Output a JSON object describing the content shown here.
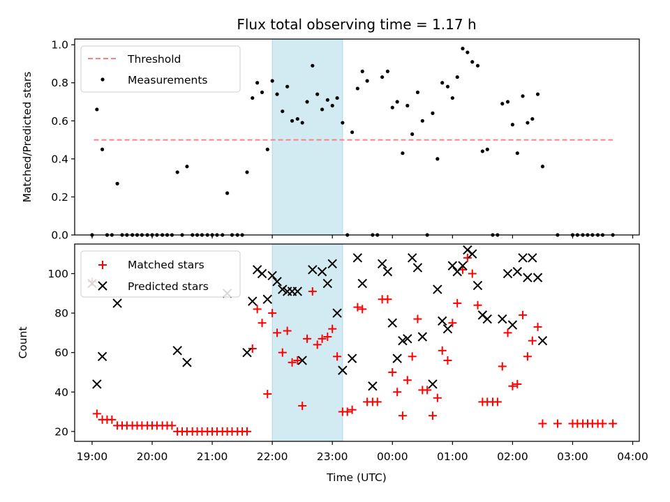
{
  "chart_data": [
    {
      "type": "scatter",
      "title": "Flux total observing time = 1.17 h",
      "ylabel": "Matched/Predicted stars",
      "xlim": [
        18.71,
        28.11
      ],
      "ylim": [
        0,
        1.03
      ],
      "yticks": [
        "0.0",
        "0.2",
        "0.4",
        "0.6",
        "0.8",
        "1.0"
      ],
      "ytick_values": [
        0,
        0.2,
        0.4,
        0.6,
        0.8,
        1.0
      ],
      "shaded_span": [
        22.0,
        23.17
      ],
      "threshold": {
        "name": "Threshold",
        "value": 0.5,
        "x_range": [
          19.03,
          27.67
        ],
        "color": "#ff7f7f"
      },
      "legend": {
        "position": "top-left",
        "entries": [
          "Threshold",
          "Measurements"
        ]
      },
      "series": [
        {
          "name": "Measurements",
          "color": "#000000",
          "points": [
            [
              19.0,
              0.0
            ],
            [
              19.08,
              0.66
            ],
            [
              19.17,
              0.45
            ],
            [
              19.25,
              0.0
            ],
            [
              19.33,
              0.0
            ],
            [
              19.42,
              0.27
            ],
            [
              19.5,
              0.0
            ],
            [
              19.58,
              0.0
            ],
            [
              19.67,
              0.0
            ],
            [
              19.75,
              0.0
            ],
            [
              19.83,
              0.0
            ],
            [
              19.92,
              0.0
            ],
            [
              20.0,
              0.0
            ],
            [
              20.08,
              0.0
            ],
            [
              20.17,
              0.0
            ],
            [
              20.25,
              0.0
            ],
            [
              20.33,
              0.0
            ],
            [
              20.42,
              0.33
            ],
            [
              20.5,
              0.0
            ],
            [
              20.58,
              0.36
            ],
            [
              20.67,
              0.0
            ],
            [
              20.75,
              0.0
            ],
            [
              20.83,
              0.0
            ],
            [
              20.92,
              0.0
            ],
            [
              21.0,
              0.0
            ],
            [
              21.08,
              0.0
            ],
            [
              21.17,
              0.0
            ],
            [
              21.25,
              0.22
            ],
            [
              21.33,
              0.0
            ],
            [
              21.42,
              0.0
            ],
            [
              21.5,
              0.0
            ],
            [
              21.58,
              0.33
            ],
            [
              21.67,
              0.72
            ],
            [
              21.75,
              0.8
            ],
            [
              21.83,
              0.75
            ],
            [
              21.92,
              0.45
            ],
            [
              22.0,
              0.81
            ],
            [
              22.08,
              0.74
            ],
            [
              22.17,
              0.65
            ],
            [
              22.25,
              0.78
            ],
            [
              22.33,
              0.6
            ],
            [
              22.42,
              0.61
            ],
            [
              22.5,
              0.59
            ],
            [
              22.58,
              0.7
            ],
            [
              22.67,
              0.89
            ],
            [
              22.75,
              0.74
            ],
            [
              22.83,
              0.66
            ],
            [
              22.92,
              0.71
            ],
            [
              23.0,
              0.68
            ],
            [
              23.08,
              0.72
            ],
            [
              23.17,
              0.59
            ],
            [
              23.25,
              0.0
            ],
            [
              23.33,
              0.54
            ],
            [
              23.42,
              0.77
            ],
            [
              23.5,
              0.86
            ],
            [
              23.58,
              0.81
            ],
            [
              23.67,
              0.0
            ],
            [
              23.75,
              0.0
            ],
            [
              23.83,
              0.83
            ],
            [
              23.92,
              0.86
            ],
            [
              24.0,
              0.67
            ],
            [
              24.08,
              0.7
            ],
            [
              24.17,
              0.43
            ],
            [
              24.25,
              0.68
            ],
            [
              24.33,
              0.53
            ],
            [
              24.42,
              0.75
            ],
            [
              24.5,
              0.6
            ],
            [
              24.58,
              0.0
            ],
            [
              24.67,
              0.64
            ],
            [
              24.75,
              0.4
            ],
            [
              24.83,
              0.8
            ],
            [
              24.92,
              0.78
            ],
            [
              25.0,
              0.72
            ],
            [
              25.08,
              0.83
            ],
            [
              25.17,
              0.98
            ],
            [
              25.25,
              0.96
            ],
            [
              25.33,
              0.91
            ],
            [
              25.42,
              0.89
            ],
            [
              25.5,
              0.44
            ],
            [
              25.58,
              0.45
            ],
            [
              25.67,
              0.0
            ],
            [
              25.75,
              0.0
            ],
            [
              25.83,
              0.69
            ],
            [
              25.92,
              0.7
            ],
            [
              26.0,
              0.58
            ],
            [
              26.08,
              0.43
            ],
            [
              26.17,
              0.73
            ],
            [
              26.25,
              0.59
            ],
            [
              26.33,
              0.61
            ],
            [
              26.42,
              0.74
            ],
            [
              26.5,
              0.36
            ],
            [
              26.75,
              0.0
            ],
            [
              27.0,
              0.0
            ],
            [
              27.08,
              0.0
            ],
            [
              27.17,
              0.0
            ],
            [
              27.25,
              0.0
            ],
            [
              27.33,
              0.0
            ],
            [
              27.42,
              0.0
            ],
            [
              27.5,
              0.0
            ],
            [
              27.67,
              0.0
            ]
          ]
        }
      ]
    },
    {
      "type": "scatter",
      "xlabel": "Time (UTC)",
      "ylabel": "Count",
      "xlim": [
        18.71,
        28.11
      ],
      "ylim": [
        15,
        115
      ],
      "xticks": [
        "19:00",
        "20:00",
        "21:00",
        "22:00",
        "23:00",
        "00:00",
        "01:00",
        "02:00",
        "03:00",
        "04:00"
      ],
      "xtick_values": [
        19,
        20,
        21,
        22,
        23,
        24,
        25,
        26,
        27,
        28
      ],
      "yticks": [
        "20",
        "40",
        "60",
        "80",
        "100"
      ],
      "ytick_values": [
        20,
        40,
        60,
        80,
        100
      ],
      "shaded_span": [
        22.0,
        23.17
      ],
      "legend": {
        "position": "top-left",
        "entries": [
          "Matched stars",
          "Predicted stars"
        ]
      },
      "series": [
        {
          "name": "Matched stars",
          "marker": "plus",
          "color": "#ff0000",
          "points": [
            [
              19.0,
              96
            ],
            [
              19.08,
              29
            ],
            [
              19.17,
              26
            ],
            [
              19.25,
              26
            ],
            [
              19.33,
              26
            ],
            [
              19.42,
              23
            ],
            [
              19.5,
              23
            ],
            [
              19.58,
              23
            ],
            [
              19.67,
              23
            ],
            [
              19.75,
              23
            ],
            [
              19.83,
              23
            ],
            [
              19.92,
              23
            ],
            [
              20.0,
              23
            ],
            [
              20.08,
              23
            ],
            [
              20.17,
              23
            ],
            [
              20.25,
              23
            ],
            [
              20.33,
              23
            ],
            [
              20.42,
              20
            ],
            [
              20.5,
              20
            ],
            [
              20.58,
              20
            ],
            [
              20.67,
              20
            ],
            [
              20.75,
              20
            ],
            [
              20.83,
              20
            ],
            [
              20.92,
              20
            ],
            [
              21.0,
              20
            ],
            [
              21.08,
              20
            ],
            [
              21.17,
              20
            ],
            [
              21.25,
              20
            ],
            [
              21.33,
              20
            ],
            [
              21.42,
              20
            ],
            [
              21.5,
              20
            ],
            [
              21.58,
              20
            ],
            [
              21.67,
              62
            ],
            [
              21.75,
              82
            ],
            [
              21.83,
              75
            ],
            [
              21.92,
              39
            ],
            [
              22.0,
              80
            ],
            [
              22.08,
              70
            ],
            [
              22.17,
              60
            ],
            [
              22.25,
              71
            ],
            [
              22.33,
              55
            ],
            [
              22.42,
              56
            ],
            [
              22.5,
              33
            ],
            [
              22.58,
              67
            ],
            [
              22.67,
              91
            ],
            [
              22.75,
              64
            ],
            [
              22.83,
              67
            ],
            [
              22.92,
              68
            ],
            [
              23.0,
              72
            ],
            [
              23.08,
              58
            ],
            [
              23.17,
              30
            ],
            [
              23.25,
              30
            ],
            [
              23.33,
              31
            ],
            [
              23.42,
              83
            ],
            [
              23.5,
              82
            ],
            [
              23.58,
              35
            ],
            [
              23.67,
              35
            ],
            [
              23.75,
              35
            ],
            [
              23.83,
              87
            ],
            [
              23.92,
              87
            ],
            [
              24.0,
              50
            ],
            [
              24.08,
              40
            ],
            [
              24.17,
              28
            ],
            [
              24.25,
              46
            ],
            [
              24.33,
              58
            ],
            [
              24.42,
              77
            ],
            [
              24.5,
              41
            ],
            [
              24.58,
              41
            ],
            [
              24.67,
              28
            ],
            [
              24.75,
              37
            ],
            [
              24.83,
              61
            ],
            [
              24.92,
              56
            ],
            [
              25.0,
              75
            ],
            [
              25.08,
              85
            ],
            [
              25.17,
              102
            ],
            [
              25.25,
              108
            ],
            [
              25.33,
              100
            ],
            [
              25.42,
              84
            ],
            [
              25.5,
              35
            ],
            [
              25.58,
              35
            ],
            [
              25.67,
              35
            ],
            [
              25.75,
              35
            ],
            [
              25.83,
              53
            ],
            [
              25.92,
              70
            ],
            [
              26.0,
              43
            ],
            [
              26.08,
              44
            ],
            [
              26.17,
              79
            ],
            [
              26.25,
              58
            ],
            [
              26.33,
              66
            ],
            [
              26.42,
              73
            ],
            [
              26.5,
              24
            ],
            [
              26.75,
              24
            ],
            [
              27.0,
              24
            ],
            [
              27.08,
              24
            ],
            [
              27.17,
              24
            ],
            [
              27.25,
              24
            ],
            [
              27.33,
              24
            ],
            [
              27.42,
              24
            ],
            [
              27.5,
              24
            ],
            [
              27.67,
              24
            ]
          ]
        },
        {
          "name": "Predicted stars",
          "marker": "x",
          "color": "#000000",
          "points": [
            [
              19.0,
              95
            ],
            [
              19.08,
              44
            ],
            [
              19.17,
              58
            ],
            [
              19.42,
              85
            ],
            [
              20.42,
              61
            ],
            [
              20.58,
              55
            ],
            [
              21.25,
              90
            ],
            [
              21.58,
              60
            ],
            [
              21.67,
              86
            ],
            [
              21.75,
              102
            ],
            [
              21.83,
              100
            ],
            [
              21.92,
              87
            ],
            [
              22.0,
              99
            ],
            [
              22.08,
              96
            ],
            [
              22.17,
              92
            ],
            [
              22.25,
              91
            ],
            [
              22.33,
              91
            ],
            [
              22.42,
              91
            ],
            [
              22.5,
              56
            ],
            [
              22.67,
              102
            ],
            [
              22.83,
              101
            ],
            [
              22.92,
              95
            ],
            [
              23.0,
              105
            ],
            [
              23.08,
              80
            ],
            [
              23.17,
              51
            ],
            [
              23.33,
              57
            ],
            [
              23.42,
              108
            ],
            [
              23.5,
              95
            ],
            [
              23.67,
              43
            ],
            [
              23.83,
              105
            ],
            [
              23.92,
              101
            ],
            [
              24.0,
              75
            ],
            [
              24.08,
              57
            ],
            [
              24.17,
              66
            ],
            [
              24.25,
              67
            ],
            [
              24.33,
              108
            ],
            [
              24.42,
              103
            ],
            [
              24.5,
              68
            ],
            [
              24.67,
              44
            ],
            [
              24.75,
              92
            ],
            [
              24.83,
              76
            ],
            [
              24.92,
              72
            ],
            [
              25.0,
              104
            ],
            [
              25.08,
              101
            ],
            [
              25.17,
              104
            ],
            [
              25.25,
              112
            ],
            [
              25.33,
              110
            ],
            [
              25.42,
              94
            ],
            [
              25.5,
              79
            ],
            [
              25.58,
              77
            ],
            [
              25.83,
              77
            ],
            [
              25.92,
              100
            ],
            [
              26.0,
              74
            ],
            [
              26.08,
              101
            ],
            [
              26.17,
              108
            ],
            [
              26.25,
              98
            ],
            [
              26.33,
              108
            ],
            [
              26.42,
              98
            ],
            [
              26.5,
              66
            ]
          ]
        }
      ]
    }
  ]
}
